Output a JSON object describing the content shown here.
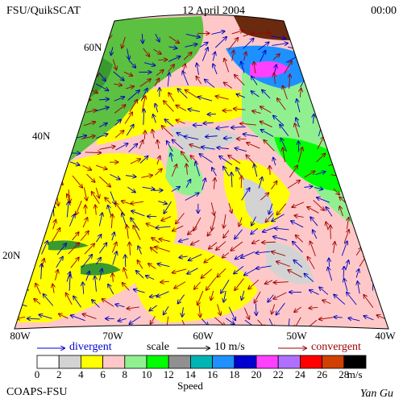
{
  "header": {
    "title": "FSU/QuikSCAT",
    "date": "12 April 2004",
    "time": "00:00"
  },
  "map": {
    "lat_labels": [
      "60N",
      "40N",
      "20N"
    ],
    "lon_labels": [
      "80W",
      "70W",
      "60W",
      "50W",
      "40W"
    ]
  },
  "legend": {
    "divergent": "divergent",
    "scale": "scale",
    "scale_value": "10 m/s",
    "convergent": "convergent"
  },
  "colorbar": {
    "colors": [
      "#ffffff",
      "#d3d3d3",
      "#ffff00",
      "#ffc8c8",
      "#90f090",
      "#00ff00",
      "#909090",
      "#00b4b4",
      "#1e90ff",
      "#0000d0",
      "#ff40ff",
      "#b070ff",
      "#ff0000",
      "#d04000",
      "#000000"
    ],
    "labels": [
      0,
      2,
      4,
      6,
      8,
      10,
      12,
      14,
      16,
      18,
      20,
      22,
      24,
      26,
      28
    ],
    "unit": "m/s",
    "title": "Speed"
  },
  "footer": {
    "left": "COAPS-FSU",
    "right": "Yan Gu"
  }
}
